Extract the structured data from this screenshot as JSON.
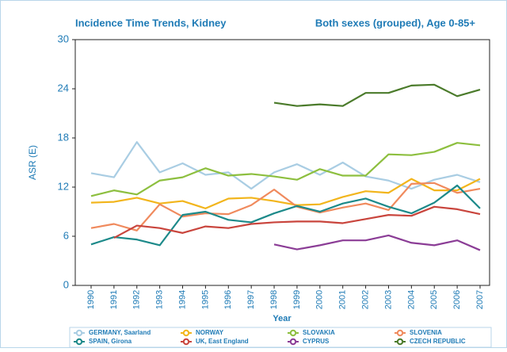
{
  "chart_data": {
    "type": "line",
    "title": "Incidence Time Trends, Kidney",
    "subtitle": "Both sexes (grouped), Age 0-85+",
    "y_label": "ASR (E)",
    "x_label": "Year",
    "categories": [
      "1990",
      "1991",
      "1992",
      "1993",
      "1994",
      "1995",
      "1996",
      "1997",
      "1998",
      "1999",
      "2000",
      "2001",
      "2002",
      "2003",
      "2004",
      "2005",
      "2006",
      "2007"
    ],
    "ylim": [
      0,
      30
    ],
    "yticks": [
      0,
      6,
      12,
      18,
      24,
      30
    ],
    "grid": false,
    "series": [
      {
        "name": "GERMANY, Saarland",
        "color": "#a9cde3",
        "values": [
          13.7,
          13.2,
          17.5,
          13.8,
          14.9,
          13.5,
          13.8,
          11.8,
          13.8,
          14.8,
          13.5,
          15.0,
          13.3,
          12.8,
          11.8,
          12.9,
          13.5,
          12.6
        ]
      },
      {
        "name": "NORWAY",
        "color": "#f2b51c",
        "values": [
          10.1,
          10.2,
          10.7,
          10.0,
          10.3,
          9.4,
          10.6,
          10.7,
          10.3,
          9.8,
          9.9,
          10.8,
          11.5,
          11.3,
          13.0,
          11.6,
          11.6,
          13.0
        ]
      },
      {
        "name": "SLOVAKIA",
        "color": "#8dbf3f",
        "values": [
          10.9,
          11.6,
          11.1,
          12.8,
          13.2,
          14.3,
          13.4,
          13.6,
          13.3,
          12.9,
          14.2,
          13.4,
          13.4,
          16.0,
          15.9,
          16.3,
          17.4,
          17.1
        ]
      },
      {
        "name": "SLOVENIA",
        "color": "#f08a5d",
        "values": [
          7.0,
          7.5,
          6.7,
          9.9,
          8.4,
          8.8,
          8.7,
          9.8,
          11.7,
          9.6,
          8.9,
          9.5,
          10.0,
          9.2,
          12.4,
          12.5,
          11.3,
          11.8
        ]
      },
      {
        "name": "SPAIN, Girona",
        "color": "#1d8a8a",
        "values": [
          5.0,
          5.9,
          5.6,
          4.9,
          8.6,
          9.0,
          8.0,
          7.7,
          8.8,
          9.7,
          9.0,
          10.0,
          10.6,
          9.6,
          8.8,
          10.1,
          12.2,
          9.4
        ]
      },
      {
        "name": "UK, East England",
        "color": "#c9453d",
        "values": [
          null,
          5.8,
          7.3,
          7.0,
          6.4,
          7.2,
          7.0,
          7.5,
          7.7,
          7.8,
          7.8,
          7.6,
          8.1,
          8.6,
          8.5,
          9.6,
          9.3,
          8.7
        ]
      },
      {
        "name": "CYPRUS",
        "color": "#8b3d96",
        "values": [
          null,
          null,
          null,
          null,
          null,
          null,
          null,
          null,
          5.0,
          4.4,
          4.9,
          5.5,
          5.5,
          6.1,
          5.2,
          4.9,
          5.5,
          4.3
        ]
      },
      {
        "name": "CZECH REPUBLIC",
        "color": "#4b7b2b",
        "values": [
          null,
          null,
          null,
          null,
          null,
          null,
          null,
          null,
          22.3,
          21.9,
          22.1,
          21.9,
          23.5,
          23.5,
          24.4,
          24.5,
          23.1,
          23.9
        ]
      }
    ]
  }
}
